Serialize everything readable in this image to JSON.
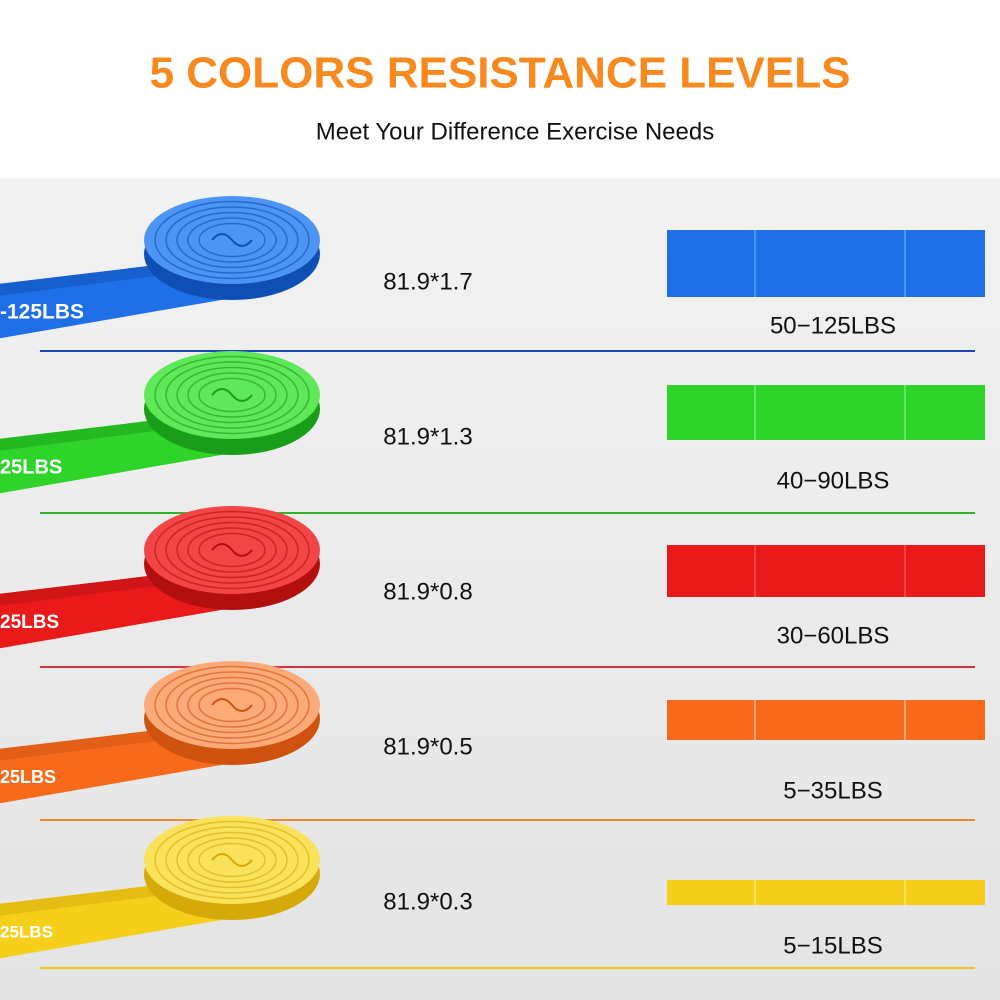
{
  "header": {
    "title": "5 COLORS RESISTANCE LEVELS",
    "subtitle": "Meet Your Difference Exercise Needs"
  },
  "rows": [
    {
      "band_text": "-125LBS",
      "size": "81.9*1.7",
      "range": "50−125LBS",
      "color": "#1e6fe8",
      "light": "#4d95f5",
      "dark": "#0f4fb5",
      "line": "#1a46b8"
    },
    {
      "band_text": "25LBS",
      "size": "81.9*1.3",
      "range": "40−90LBS",
      "color": "#2fd42a",
      "light": "#5fe85a",
      "dark": "#1a9d18",
      "line": "#2fb52c"
    },
    {
      "band_text": "25LBS",
      "size": "81.9*0.8",
      "range": "30−60LBS",
      "color": "#ea1a1a",
      "light": "#f24545",
      "dark": "#b40f0f",
      "line": "#d2363a"
    },
    {
      "band_text": "25LBS",
      "size": "81.9*0.5",
      "range": "5−35LBS",
      "color": "#f76a1c",
      "light": "#fbaa78",
      "dark": "#d0520f",
      "line": "#f08a2a"
    },
    {
      "band_text": "25LBS",
      "size": "81.9*0.3",
      "range": "5−15LBS",
      "color": "#f5cf1a",
      "light": "#fae25a",
      "dark": "#d6a90a",
      "line": "#f2c51c"
    }
  ]
}
